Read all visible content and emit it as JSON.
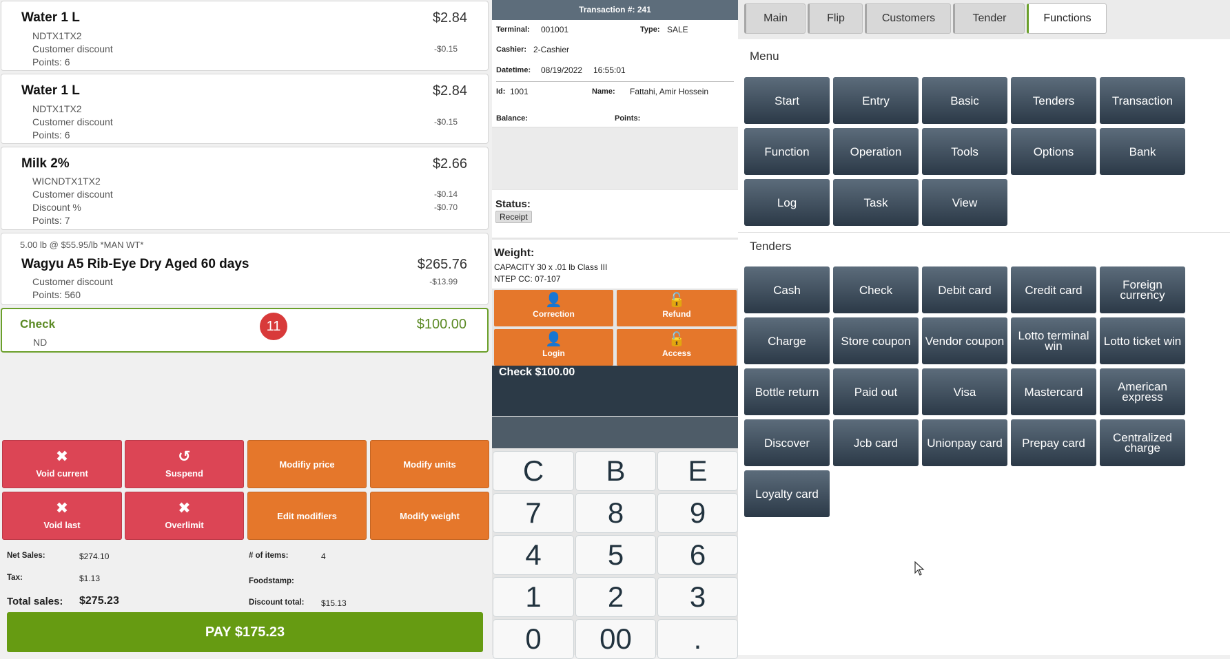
{
  "items": [
    {
      "name": "Water 1 L",
      "price": "$2.84",
      "lines": [
        "NDTX1TX2",
        "Customer discount",
        "Points: 6"
      ],
      "values": [
        "-$0.15"
      ]
    },
    {
      "name": "Water 1 L",
      "price": "$2.84",
      "lines": [
        "NDTX1TX2",
        "Customer discount",
        "Points: 6"
      ],
      "values": [
        "-$0.15"
      ]
    },
    {
      "name": "Milk 2%",
      "price": "$2.66",
      "lines": [
        "WICNDTX1TX2",
        "Customer discount",
        "Discount %",
        "Points: 7"
      ],
      "values": [
        "-$0.14",
        "-$0.70"
      ]
    },
    {
      "pre": "5.00 lb @ $55.95/lb *MAN WT*",
      "name": "Wagyu A5 Rib-Eye Dry Aged 60 days",
      "price": "$265.76",
      "lines": [
        "Customer discount",
        "Points: 560"
      ],
      "values": [
        "-$13.99"
      ]
    }
  ],
  "check_item": {
    "name": "Check",
    "price": "$100.00",
    "sub": "ND",
    "badge": "11"
  },
  "actions": {
    "void_current": "Void current",
    "suspend": "Suspend",
    "modify_price": "Modifiy price",
    "modify_units": "Modify units",
    "void_last": "Void last",
    "overlimit": "Overlimit",
    "edit_modifiers": "Edit modifiers",
    "modify_weight": "Modify weight"
  },
  "totals": {
    "net_sales_label": "Net Sales:",
    "net_sales": "$274.10",
    "tax_label": "Tax:",
    "tax": "$1.13",
    "total_label": "Total sales:",
    "total": "$275.23",
    "items_label": "# of items:",
    "items": "4",
    "foodstamp_label": "Foodstamp:",
    "discount_label": "Discount total:",
    "discount": "$15.13"
  },
  "pay_label": "PAY $175.23",
  "transaction": {
    "header": "Transaction #: 241",
    "terminal_label": "Terminal:",
    "terminal": "001001",
    "type_label": "Type:",
    "type": "SALE",
    "cashier_label": "Cashier:",
    "cashier": "2-Cashier",
    "datetime_label": "Datetime:",
    "date": "08/19/2022",
    "time": "16:55:01",
    "id_label": "Id:",
    "id": "1001",
    "name_label": "Name:",
    "name": "Fattahi, Amir Hossein",
    "balance_label": "Balance:",
    "points_label": "Points:"
  },
  "status": {
    "label": "Status:",
    "value": "Receipt"
  },
  "weight": {
    "label": "Weight:",
    "line1": "CAPACITY 30 x .01 lb Class III",
    "line2": "NTEP CC: 07-107"
  },
  "ops": {
    "correction": "Correction",
    "refund": "Refund",
    "login": "Login",
    "access": "Access"
  },
  "display_text": "Check $100.00",
  "keypad": [
    "C",
    "B",
    "E",
    "7",
    "8",
    "9",
    "4",
    "5",
    "6",
    "1",
    "2",
    "3",
    "0",
    "00",
    "."
  ],
  "tabs": [
    "Main",
    "Flip",
    "Customers",
    "Tender",
    "Functions"
  ],
  "menu_title": "Menu",
  "menu": [
    "Start",
    "Entry",
    "Basic",
    "Tenders",
    "Transaction",
    "Function",
    "Operation",
    "Tools",
    "Options",
    "Bank",
    "Log",
    "Task",
    "View"
  ],
  "tenders_title": "Tenders",
  "tenders": [
    "Cash",
    "Check",
    "Debit card",
    "Credit card",
    "Foreign currency",
    "Charge",
    "Store coupon",
    "Vendor coupon",
    "Lotto terminal win",
    "Lotto ticket win",
    "Bottle return",
    "Paid out",
    "Visa",
    "Mastercard",
    "American express",
    "Discover",
    "Jcb card",
    "Unionpay card",
    "Prepay card",
    "Centralized charge",
    "Loyalty card"
  ]
}
